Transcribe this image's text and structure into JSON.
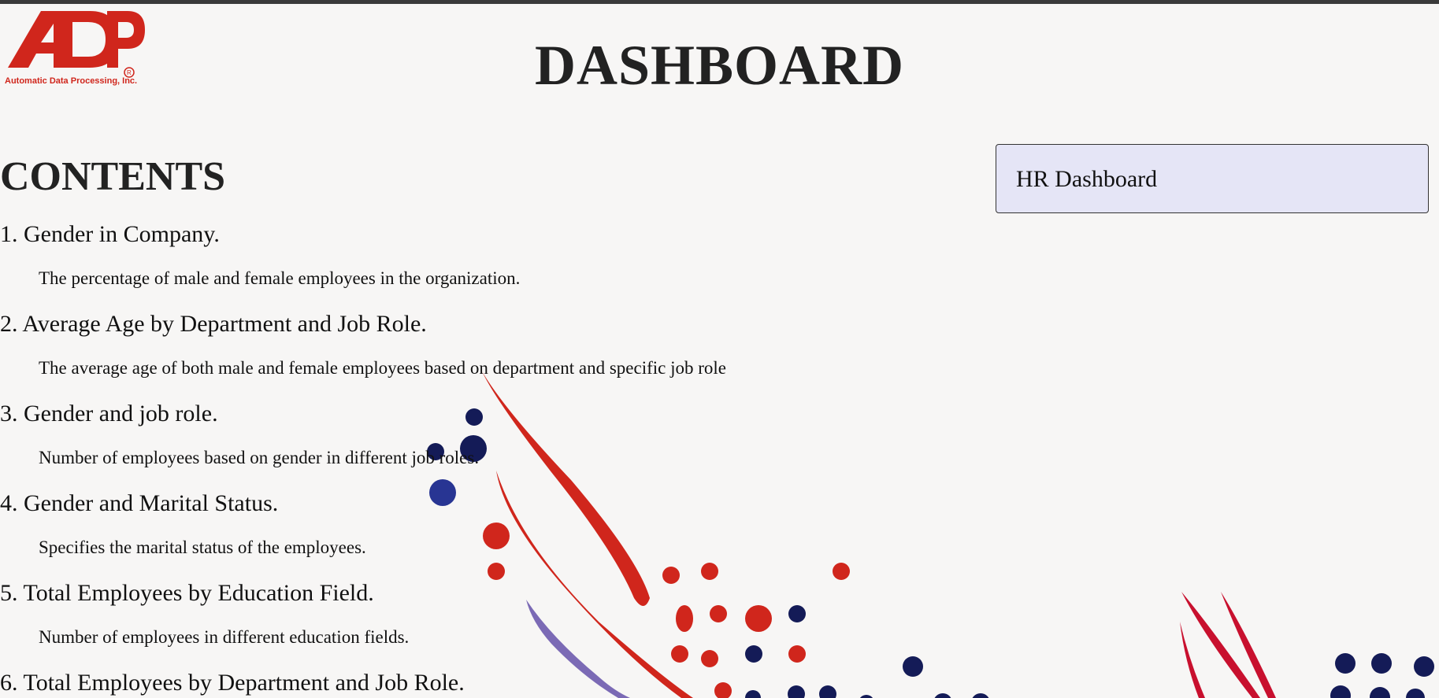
{
  "page": {
    "title": "DASHBOARD"
  },
  "logo": {
    "icon": "adp-logo-icon",
    "mark": "ADP",
    "caption": "Automatic Data Processing, Inc."
  },
  "contents": {
    "heading": "CONTENTS",
    "items": [
      {
        "title": "1. Gender in Company.",
        "description": "The percentage of male and female employees in the organization."
      },
      {
        "title": "2. Average Age by Department and Job Role.",
        "description": "The average age of both male and female employees based on department and specific job role"
      },
      {
        "title": "3. Gender and job role.",
        "description": "Number of employees based on gender in different job roles."
      },
      {
        "title": "4. Gender and Marital Status.",
        "description": "Specifies the marital status of the employees."
      },
      {
        "title": "5. Total Employees by Education Field.",
        "description": "Number of employees in different education fields."
      },
      {
        "title": "6. Total Employees by Department and Job Role.",
        "description": ""
      }
    ]
  },
  "sidebar": {
    "dashboard_link": "HR Dashboard"
  },
  "colors": {
    "brand_red": "#d0261c",
    "navy": "#141b57",
    "purple": "#7b6ab5",
    "panel_bg": "#e5e5f6",
    "page_bg": "#f7f6f5"
  }
}
